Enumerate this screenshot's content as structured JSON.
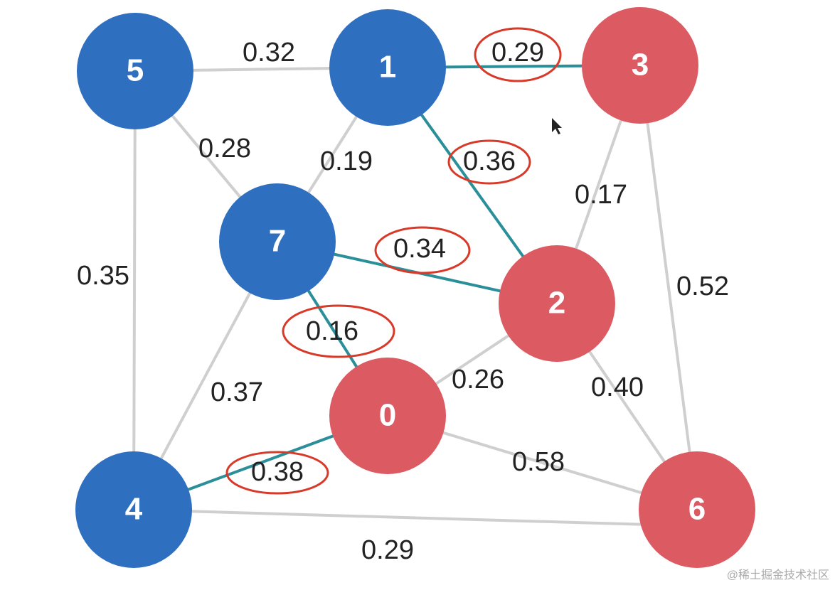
{
  "nodes": [
    {
      "label": "5"
    },
    {
      "label": "1"
    },
    {
      "label": "3"
    },
    {
      "label": "7"
    },
    {
      "label": "2"
    },
    {
      "label": "0"
    },
    {
      "label": "4"
    },
    {
      "label": "6"
    }
  ],
  "edges": [
    {
      "weight": "0.32"
    },
    {
      "weight": "0.29"
    },
    {
      "weight": "0.36"
    },
    {
      "weight": "0.19"
    },
    {
      "weight": "0.28"
    },
    {
      "weight": "0.35"
    },
    {
      "weight": "0.34"
    },
    {
      "weight": "0.16"
    },
    {
      "weight": "0.37"
    },
    {
      "weight": "0.17"
    },
    {
      "weight": "0.52"
    },
    {
      "weight": "0.26"
    },
    {
      "weight": "0.40"
    },
    {
      "weight": "0.58"
    },
    {
      "weight": "0.38"
    },
    {
      "weight": "0.29"
    }
  ],
  "watermark": "@稀土掘金技术社区"
}
